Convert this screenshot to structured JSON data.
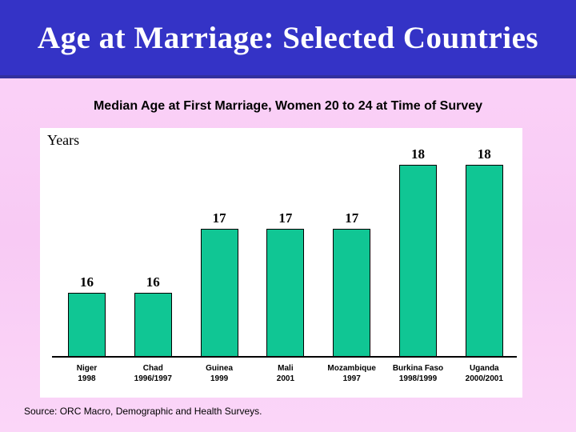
{
  "slide": {
    "title": "Age at Marriage: Selected Countries",
    "subtitle": "Median Age at First Marriage, Women 20 to 24 at Time of Survey",
    "source": "Source: ORC Macro, Demographic and Health Surveys."
  },
  "colors": {
    "title_bar": "#3433c6",
    "title_bar_edge": "#32309e",
    "title_text": "#ffffff",
    "background_pink": "#f9cdf5",
    "panel_background": "#ffffff",
    "bar_fill": "#10c694",
    "bar_border": "#000000",
    "text": "#000000"
  },
  "chart_data": {
    "type": "bar",
    "title": "Median Age at First Marriage, Women 20 to 24 at Time of Survey",
    "ylabel": "Years",
    "categories": [
      "Niger",
      "Chad",
      "Guinea",
      "Mali",
      "Mozambique",
      "Burkina Faso",
      "Uganda"
    ],
    "category_years": [
      "1998",
      "1996/1997",
      "1999",
      "2001",
      "1997",
      "1998/1999",
      "2000/2001"
    ],
    "values": [
      16,
      16,
      17,
      17,
      17,
      18,
      18
    ],
    "ylim": [
      15,
      18.5
    ],
    "grid": false,
    "legend_position": "none",
    "data_labels": true
  }
}
